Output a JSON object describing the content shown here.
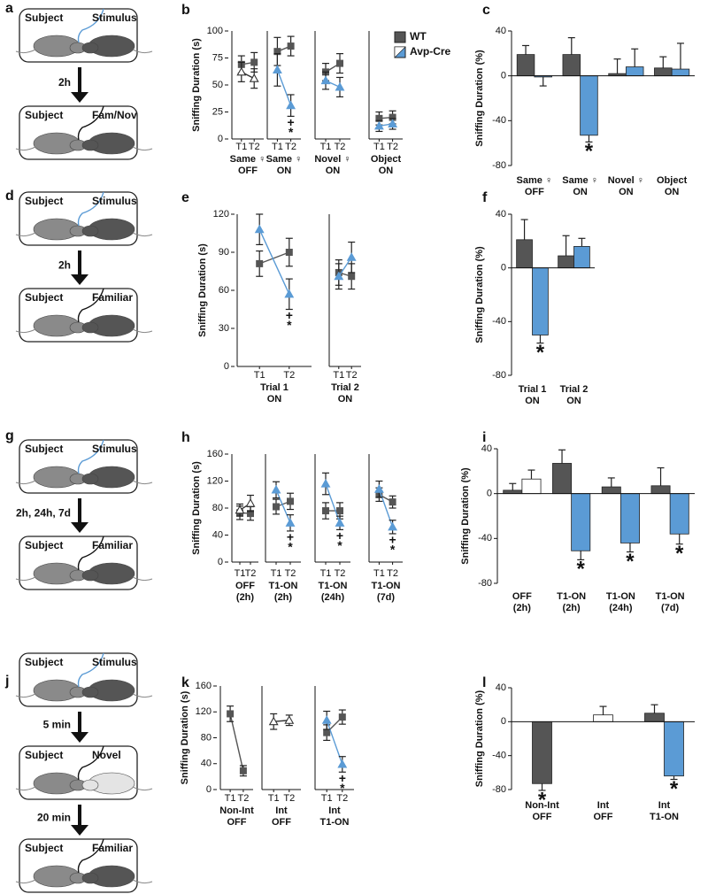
{
  "schematics": [
    {
      "panel": "a",
      "steps": [
        {
          "left": "Subject",
          "right": "Stimulus"
        },
        {
          "left": "Subject",
          "right": "Fam/Nov"
        }
      ],
      "intervals": [
        "2h"
      ]
    },
    {
      "panel": "d",
      "steps": [
        {
          "left": "Subject",
          "right": "Stimulus"
        },
        {
          "left": "Subject",
          "right": "Familiar"
        }
      ],
      "intervals": [
        "2h"
      ]
    },
    {
      "panel": "g",
      "steps": [
        {
          "left": "Subject",
          "right": "Stimulus"
        },
        {
          "left": "Subject",
          "right": "Familiar"
        }
      ],
      "intervals": [
        "2h, 24h, 7d"
      ]
    },
    {
      "panel": "j",
      "steps": [
        {
          "left": "Subject",
          "right": "Stimulus"
        },
        {
          "left": "Subject",
          "right": "Novel"
        },
        {
          "left": "Subject",
          "right": "Familiar"
        }
      ],
      "intervals": [
        "5 min",
        "20 min"
      ]
    }
  ],
  "chart_data": [
    {
      "type": "line",
      "panel": "b",
      "ylabel": "Sniffing Duration (s)",
      "ylim": [
        0,
        100
      ],
      "yticks": [
        0,
        25,
        50,
        75,
        100
      ],
      "legend": [
        {
          "name": "WT",
          "color": "#555555"
        },
        {
          "name": "Avp-Cre",
          "color": "#5b9bd5"
        }
      ],
      "facets": [
        {
          "label": "Same ♀\nOFF",
          "categories": [
            "T1",
            "T2"
          ],
          "series": [
            {
              "marker": "square",
              "color": "#555555",
              "values": [
                69,
                71
              ],
              "errors": [
                8,
                9
              ]
            },
            {
              "marker": "triangle",
              "color": "#ffffff",
              "values": [
                62,
                56
              ],
              "errors": [
                9,
                9
              ]
            }
          ]
        },
        {
          "label": "Same ♀\nON",
          "categories": [
            "T1",
            "T2"
          ],
          "series": [
            {
              "marker": "square",
              "color": "#555555",
              "values": [
                81,
                86
              ],
              "errors": [
                13,
                9
              ]
            },
            {
              "marker": "triangle",
              "color": "#5b9bd5",
              "values": [
                64,
                31
              ],
              "errors": [
                15,
                10
              ],
              "annotations": [
                null,
                [
                  "+",
                  "*"
                ]
              ]
            }
          ]
        },
        {
          "label": "Novel ♀\nON",
          "categories": [
            "T1",
            "T2"
          ],
          "series": [
            {
              "marker": "square",
              "color": "#555555",
              "values": [
                62,
                70
              ],
              "errors": [
                8,
                9
              ]
            },
            {
              "marker": "triangle",
              "color": "#5b9bd5",
              "values": [
                54,
                48
              ],
              "errors": [
                8,
                9
              ]
            }
          ]
        },
        {
          "label": "Object\nON",
          "categories": [
            "T1",
            "T2"
          ],
          "series": [
            {
              "marker": "square",
              "color": "#555555",
              "values": [
                19,
                20
              ],
              "errors": [
                6,
                6
              ]
            },
            {
              "marker": "triangle",
              "color": "#5b9bd5",
              "values": [
                12,
                14
              ],
              "errors": [
                5,
                5
              ]
            }
          ]
        }
      ]
    },
    {
      "type": "bar",
      "panel": "c",
      "ylabel": "Sniffing Duration (%)",
      "ylim": [
        -80,
        40
      ],
      "yticks": [
        -80,
        -40,
        0,
        40
      ],
      "categories": [
        "Same ♀\nOFF",
        "Same ♀\nON",
        "Novel ♀\nON",
        "Object\nON"
      ],
      "series": [
        {
          "color": "#555555",
          "values": [
            19,
            19,
            2,
            7
          ],
          "errors": [
            8,
            15,
            13,
            10
          ]
        },
        {
          "color": "#5b9bd5",
          "values": [
            -1,
            -53,
            8,
            6
          ],
          "errors": [
            8,
            6,
            16,
            23
          ],
          "annotations": [
            null,
            "*",
            null,
            null
          ]
        }
      ]
    },
    {
      "type": "line",
      "panel": "e",
      "ylabel": "Sniffing Duration (s)",
      "ylim": [
        0,
        120
      ],
      "yticks": [
        0,
        30,
        60,
        90,
        120
      ],
      "facets": [
        {
          "label": "Trial 1\nON",
          "categories": [
            "T1",
            "T2"
          ],
          "series": [
            {
              "marker": "square",
              "color": "#555555",
              "values": [
                81,
                90
              ],
              "errors": [
                10,
                11
              ]
            },
            {
              "marker": "triangle",
              "color": "#5b9bd5",
              "values": [
                108,
                57
              ],
              "errors": [
                12,
                12
              ],
              "annotations": [
                null,
                [
                  "+",
                  "*"
                ]
              ]
            }
          ]
        },
        {
          "label": "Trial 2\nON",
          "categories": [
            "T1",
            "T2"
          ],
          "series": [
            {
              "marker": "square",
              "color": "#555555",
              "values": [
                74,
                71
              ],
              "errors": [
                10,
                10
              ]
            },
            {
              "marker": "triangle",
              "color": "#5b9bd5",
              "values": [
                71,
                86
              ],
              "errors": [
                10,
                12
              ]
            }
          ]
        }
      ]
    },
    {
      "type": "bar",
      "panel": "f",
      "ylabel": "Sniffing Duration (%)",
      "ylim": [
        -80,
        40
      ],
      "yticks": [
        -80,
        -40,
        0,
        40
      ],
      "categories": [
        "Trial 1\nON",
        "Trial 2\nON"
      ],
      "series": [
        {
          "color": "#555555",
          "values": [
            21,
            9
          ],
          "errors": [
            15,
            15
          ]
        },
        {
          "color": "#5b9bd5",
          "values": [
            -50,
            16
          ],
          "errors": [
            6,
            6
          ],
          "annotations": [
            "*",
            null
          ]
        }
      ]
    },
    {
      "type": "line",
      "panel": "h",
      "ylabel": "Sniffing Duration (s)",
      "ylim": [
        0,
        160
      ],
      "yticks": [
        0,
        40,
        80,
        120,
        160
      ],
      "facets": [
        {
          "label": "OFF\n(2h)",
          "categories": [
            "T1",
            "T2"
          ],
          "series": [
            {
              "marker": "square",
              "color": "#555555",
              "values": [
                73,
                72
              ],
              "errors": [
                10,
                10
              ]
            },
            {
              "marker": "triangle",
              "color": "#ffffff",
              "values": [
                77,
                87
              ],
              "errors": [
                9,
                12
              ]
            }
          ]
        },
        {
          "label": "T1-ON\n(2h)",
          "categories": [
            "T1",
            "T2"
          ],
          "series": [
            {
              "marker": "square",
              "color": "#555555",
              "values": [
                82,
                90
              ],
              "errors": [
                11,
                12
              ]
            },
            {
              "marker": "triangle",
              "color": "#5b9bd5",
              "values": [
                107,
                58
              ],
              "errors": [
                12,
                12
              ],
              "annotations": [
                null,
                [
                  "+",
                  "*"
                ]
              ]
            }
          ]
        },
        {
          "label": "T1-ON\n(24h)",
          "categories": [
            "T1",
            "T2"
          ],
          "series": [
            {
              "marker": "square",
              "color": "#555555",
              "values": [
                76,
                76
              ],
              "errors": [
                12,
                12
              ]
            },
            {
              "marker": "triangle",
              "color": "#5b9bd5",
              "values": [
                116,
                58
              ],
              "errors": [
                16,
                10
              ],
              "annotations": [
                null,
                [
                  "+",
                  "*"
                ]
              ]
            }
          ]
        },
        {
          "label": "T1-ON\n(7d)",
          "categories": [
            "T1",
            "T2"
          ],
          "series": [
            {
              "marker": "square",
              "color": "#555555",
              "values": [
                100,
                89
              ],
              "errors": [
                10,
                9
              ]
            },
            {
              "marker": "triangle",
              "color": "#5b9bd5",
              "values": [
                108,
                52
              ],
              "errors": [
                12,
                10
              ],
              "annotations": [
                null,
                [
                  "+",
                  "*"
                ]
              ]
            }
          ]
        }
      ]
    },
    {
      "type": "bar",
      "panel": "i",
      "ylabel": "Sniffing Duration (%)",
      "ylim": [
        -80,
        40
      ],
      "yticks": [
        -80,
        -40,
        0,
        40
      ],
      "categories": [
        "OFF\n(2h)",
        "T1-ON\n(2h)",
        "T1-ON\n(24h)",
        "T1-ON\n(7d)"
      ],
      "series": [
        {
          "color": "#555555",
          "values": [
            3,
            27,
            6,
            7
          ],
          "errors": [
            6,
            12,
            8,
            16
          ]
        },
        {
          "colors": [
            "#ffffff",
            "#5b9bd5",
            "#5b9bd5",
            "#5b9bd5"
          ],
          "values": [
            13,
            -51,
            -44,
            -36
          ],
          "errors": [
            8,
            8,
            8,
            9
          ],
          "annotations": [
            null,
            "*",
            "*",
            "*"
          ]
        }
      ]
    },
    {
      "type": "line",
      "panel": "k",
      "ylabel": "Sniffing Duration (s)",
      "ylim": [
        0,
        160
      ],
      "yticks": [
        0,
        40,
        80,
        120,
        160
      ],
      "facets": [
        {
          "label": "Non-Int\nOFF",
          "categories": [
            "T1",
            "T2"
          ],
          "series": [
            {
              "marker": "square",
              "color": "#555555",
              "values": [
                117,
                29
              ],
              "errors": [
                12,
                8
              ]
            }
          ]
        },
        {
          "label": "Int\nOFF",
          "categories": [
            "T1",
            "T2"
          ],
          "series": [
            {
              "marker": "triangle",
              "color": "#ffffff",
              "values": [
                105,
                107
              ],
              "errors": [
                12,
                8
              ]
            }
          ]
        },
        {
          "label": "Int\nT1-ON",
          "categories": [
            "T1",
            "T2"
          ],
          "series": [
            {
              "marker": "square",
              "color": "#555555",
              "values": [
                88,
                112
              ],
              "errors": [
                12,
                11
              ]
            },
            {
              "marker": "triangle",
              "color": "#5b9bd5",
              "values": [
                107,
                39
              ],
              "errors": [
                14,
                12
              ],
              "annotations": [
                null,
                [
                  "+",
                  "*"
                ]
              ]
            }
          ]
        }
      ]
    },
    {
      "type": "bar",
      "panel": "l",
      "ylabel": "Sniffing Duration (%)",
      "ylim": [
        -80,
        40
      ],
      "yticks": [
        -80,
        -40,
        0,
        40
      ],
      "categories": [
        "Non-Int\nOFF",
        "Int\nOFF",
        "Int\nT1-ON"
      ],
      "series": [
        {
          "color": "#555555",
          "values": [
            -73,
            null,
            10
          ],
          "errors": [
            8,
            null,
            10
          ],
          "annotations": [
            "*",
            null,
            null
          ]
        },
        {
          "colors": [
            null,
            "#ffffff",
            "#5b9bd5"
          ],
          "values": [
            null,
            8,
            -64
          ],
          "errors": [
            null,
            10,
            4
          ],
          "annotations": [
            null,
            null,
            "*"
          ]
        }
      ]
    }
  ]
}
